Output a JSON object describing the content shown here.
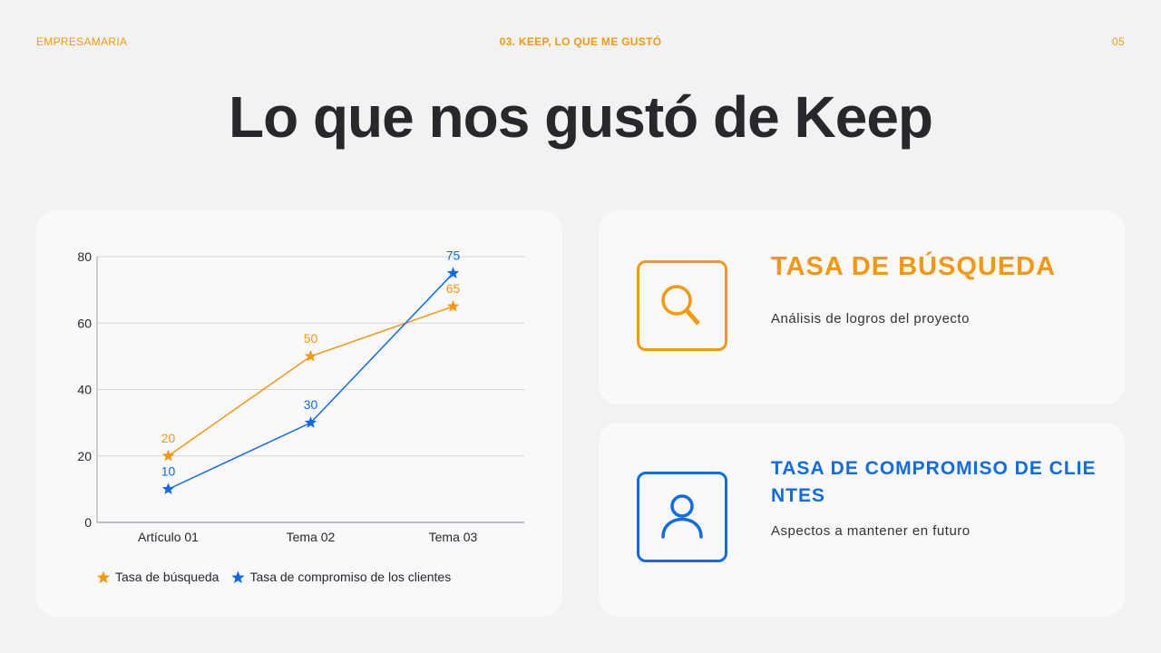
{
  "header": {
    "brand": "EMPRESAMARIA",
    "section": "03. KEEP, LO QUE ME GUSTÓ",
    "page_number": "05"
  },
  "title": "Lo que nos gustó de Keep",
  "colors": {
    "orange": "#f5980e",
    "blue": "#0f6be6",
    "text": "#28272b",
    "background": "#f3f2f3"
  },
  "cards": [
    {
      "icon": "search-icon",
      "title": "TASA DE BÚSQUEDA",
      "description": "Análisis de logros del proyecto"
    },
    {
      "icon": "user-icon",
      "title": "TASA DE COMPROMISO DE CLIENTES",
      "description": "Aspectos a mantener en futuro"
    }
  ],
  "chart_data": {
    "type": "line",
    "title": "",
    "categories": [
      "Artículo 01",
      "Tema 02",
      "Tema 03"
    ],
    "series": [
      {
        "name": "Tasa de búsqueda",
        "values": [
          20,
          50,
          65
        ],
        "color": "#f5980e",
        "marker": "star"
      },
      {
        "name": "Tasa de compromiso de los clientes",
        "values": [
          10,
          30,
          75
        ],
        "color": "#0f6be6",
        "marker": "star"
      }
    ],
    "xlabel": "",
    "ylabel": "",
    "ylim": [
      0,
      80
    ],
    "yticks": [
      "0",
      "20",
      "40",
      "60",
      "80"
    ],
    "grid": true,
    "legend_position": "bottom",
    "data_labels": true
  }
}
